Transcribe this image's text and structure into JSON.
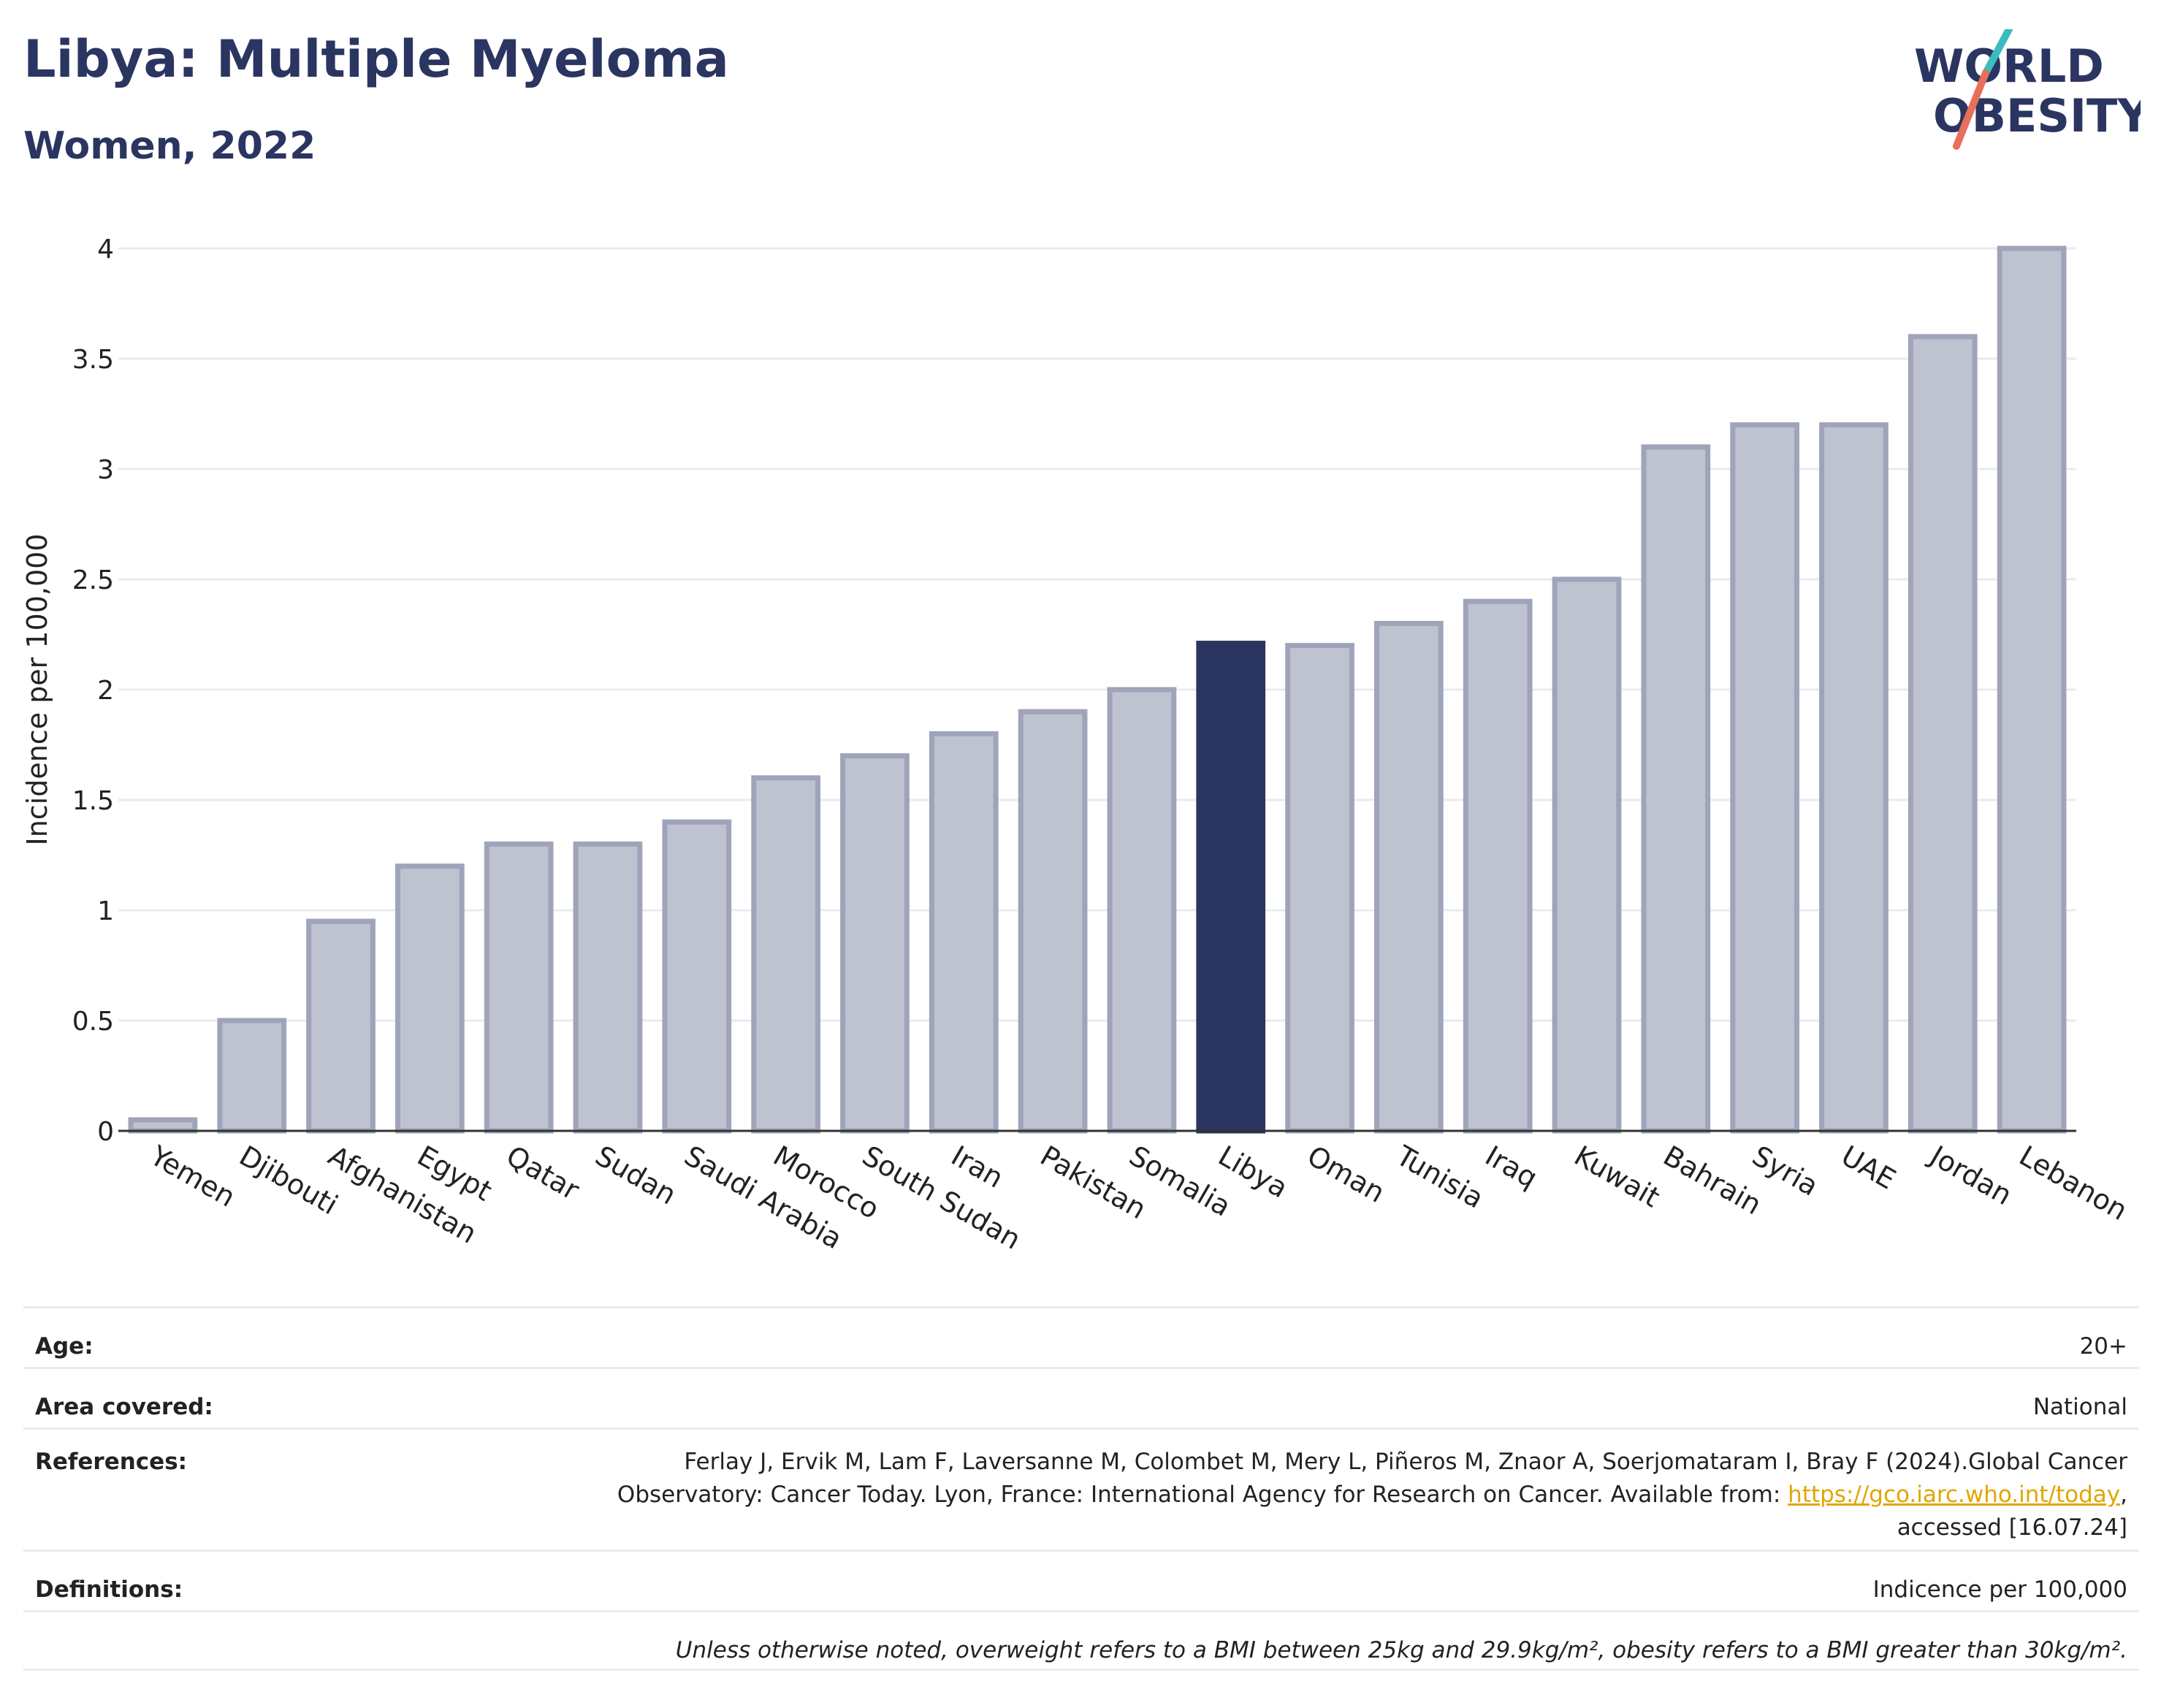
{
  "header": {
    "title": "Libya: Multiple Myeloma",
    "subtitle": "Women, 2022"
  },
  "logo": {
    "line1": "WORLD",
    "line2": "OBESITY",
    "colors": {
      "navy": "#2b3561",
      "teal": "#3bbcc0",
      "coral": "#e8705a"
    }
  },
  "chart_data": {
    "type": "bar",
    "ylabel": "Incidence per 100,000",
    "ylim": [
      0,
      4
    ],
    "yticks": [
      "0",
      "0.5",
      "1",
      "1.5",
      "2",
      "2.5",
      "3",
      "3.5",
      "4"
    ],
    "grid": true,
    "categories": [
      "Yemen",
      "Djibouti",
      "Afghanistan",
      "Egypt",
      "Qatar",
      "Sudan",
      "Saudi Arabia",
      "Morocco",
      "South Sudan",
      "Iran",
      "Pakistan",
      "Somalia",
      "Libya",
      "Oman",
      "Tunisia",
      "Iraq",
      "Kuwait",
      "Bahrain",
      "Syria",
      "UAE",
      "Jordan",
      "Lebanon"
    ],
    "values": [
      0.05,
      0.5,
      0.95,
      1.2,
      1.3,
      1.3,
      1.4,
      1.6,
      1.7,
      1.8,
      1.9,
      2.0,
      2.21,
      2.2,
      2.3,
      2.4,
      2.5,
      3.1,
      3.2,
      3.2,
      3.6,
      4.0
    ],
    "highlight": "Libya",
    "colors": {
      "bar": "#bfc2cf",
      "bar_border": "#9fa4ba",
      "highlight": "#2b3561"
    }
  },
  "meta": {
    "age": {
      "label": "Age:",
      "value": "20+"
    },
    "area": {
      "label": "Area covered:",
      "value": "National"
    },
    "references": {
      "label": "References:",
      "line1": "Ferlay J, Ervik M, Lam F, Laversanne M, Colombet M, Mery L, Piñeros M, Znaor A, Soerjomataram I, Bray F (2024).Global Cancer",
      "line2_prefix": "Observatory: Cancer Today. Lyon, France: International Agency for Research on Cancer. Available from: ",
      "link": "https://gco.iarc.who.int/today",
      "line2_suffix": ",",
      "line3": "accessed [16.07.24]"
    },
    "definitions": {
      "label": "Definitions:",
      "value": "Indicence per 100,000"
    },
    "note": "Unless otherwise noted, overweight refers to a BMI between 25kg and 29.9kg/m², obesity refers to a BMI greater than 30kg/m²."
  }
}
